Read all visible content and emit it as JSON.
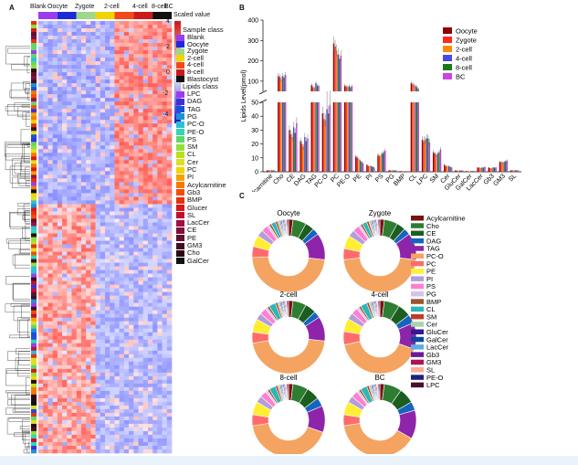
{
  "panels": {
    "a": "A",
    "b": "B",
    "c": "C"
  },
  "heatmap": {
    "column_labels": [
      "Blank",
      "Oocyte",
      "Zygote",
      "2-cell",
      "4-cell",
      "8-cell",
      "BC"
    ],
    "column_colors": [
      "#9c3cf0",
      "#1b2bd8",
      "#9fd88a",
      "#f2d400",
      "#f04a1a",
      "#cc1a1a",
      "#111111"
    ],
    "scaled_value_title": "Scaled value",
    "scale_ticks": [
      "4",
      "2",
      "0",
      "-2",
      "-4"
    ],
    "sample_class_title": "Sample class",
    "sample_classes": [
      {
        "label": "Blank",
        "color": "#9c3cf0"
      },
      {
        "label": "Oocyte",
        "color": "#1b2bd8"
      },
      {
        "label": "Zygote",
        "color": "#9fd88a"
      },
      {
        "label": "2-cell",
        "color": "#f2d400"
      },
      {
        "label": "4-cell",
        "color": "#f04a1a"
      },
      {
        "label": "8-cell",
        "color": "#cc1a1a"
      },
      {
        "label": "Blastocyst",
        "color": "#111111"
      }
    ],
    "lipids_class_title": "Lipids class",
    "lipid_classes": [
      {
        "label": "LPC",
        "color": "#9c3cf0"
      },
      {
        "label": "DAG",
        "color": "#3f2fd8"
      },
      {
        "label": "TAG",
        "color": "#1b4fd8"
      },
      {
        "label": "PG",
        "color": "#1f8fd8"
      },
      {
        "label": "PC-O",
        "color": "#2cc0d8"
      },
      {
        "label": "PE-O",
        "color": "#2fd8b0"
      },
      {
        "label": "PS",
        "color": "#5fd86a"
      },
      {
        "label": "SM",
        "color": "#8fe03a"
      },
      {
        "label": "CL",
        "color": "#b8e020"
      },
      {
        "label": "Cer",
        "color": "#dde020"
      },
      {
        "label": "PC",
        "color": "#f2d400"
      },
      {
        "label": "PI",
        "color": "#f2a200"
      },
      {
        "label": "Acylcarnitine",
        "color": "#f27a00"
      },
      {
        "label": "Gb3",
        "color": "#f25000"
      },
      {
        "label": "BMP",
        "color": "#e83010"
      },
      {
        "label": "Glucer",
        "color": "#d81818"
      },
      {
        "label": "SL",
        "color": "#c01030"
      },
      {
        "label": "LacCer",
        "color": "#a01040"
      },
      {
        "label": "CE",
        "color": "#801040"
      },
      {
        "label": "PE",
        "color": "#601030"
      },
      {
        "label": "GM3",
        "color": "#401020"
      },
      {
        "label": "Cho",
        "color": "#2a0a10"
      },
      {
        "label": "GalCer",
        "color": "#111111"
      }
    ]
  },
  "chart_data": [
    {
      "type": "bar",
      "panel": "B",
      "ylabel": "Lipids Level(pmol)",
      "y_ticks_lower": [
        "0",
        "10",
        "20",
        "30",
        "40",
        "50"
      ],
      "y_ticks_upper": [
        "100",
        "200",
        "300",
        "400"
      ],
      "ylim_lower": [
        0,
        50
      ],
      "ylim_upper": [
        50,
        400
      ],
      "categories": [
        "Acylcarnitine",
        "Cho",
        "CE",
        "DAG",
        "TAG",
        "PC-O",
        "PC",
        "PE-O",
        "PE",
        "PI",
        "PS",
        "PG",
        "BMP",
        "CL",
        "LPC",
        "SM",
        "Cer",
        "GluCer",
        "GalCer",
        "LacCer",
        "Gb3",
        "GM3",
        "SL"
      ],
      "legend_position": "top-right",
      "series": [
        {
          "name": "Oocyte",
          "color": "#8b0000",
          "values": [
            1,
            125,
            30,
            22,
            80,
            42,
            285,
            78,
            11,
            5,
            12,
            1,
            0.5,
            90,
            23,
            14,
            5,
            1,
            0.5,
            3,
            3,
            7,
            1
          ]
        },
        {
          "name": "Zygote",
          "color": "#ff2a1a",
          "values": [
            1,
            120,
            27,
            20,
            70,
            38,
            270,
            72,
            10,
            4,
            11,
            1,
            0.5,
            85,
            22,
            13,
            4,
            0.8,
            0.4,
            3,
            2.5,
            7,
            1
          ]
        },
        {
          "name": "2-cell",
          "color": "#ff8c00",
          "values": [
            1,
            110,
            25,
            18,
            65,
            37,
            250,
            70,
            9,
            4,
            12,
            1,
            0.5,
            80,
            23,
            12,
            4,
            0.8,
            0.4,
            2.5,
            2.5,
            6.5,
            1
          ]
        },
        {
          "name": "4-cell",
          "color": "#4a4ae0",
          "values": [
            1,
            125,
            32,
            25,
            90,
            45,
            230,
            75,
            8,
            4,
            13,
            1,
            0.4,
            75,
            24,
            13,
            4,
            0.9,
            0.5,
            3,
            3,
            7,
            1
          ]
        },
        {
          "name": "8-cell",
          "color": "#1a7a1a",
          "values": [
            1,
            118,
            28,
            22,
            78,
            42,
            210,
            70,
            7,
            3.5,
            14,
            1,
            0.4,
            70,
            24,
            14,
            3.5,
            0.9,
            0.5,
            3,
            3,
            7.5,
            1
          ]
        },
        {
          "name": "BC",
          "color": "#cc44dd",
          "values": [
            1,
            130,
            35,
            24,
            75,
            48,
            225,
            74,
            6,
            3,
            15,
            1,
            0.4,
            60,
            21,
            16,
            3,
            1,
            0.6,
            3.5,
            3,
            8,
            1
          ]
        }
      ]
    },
    {
      "type": "pie",
      "panel": "C",
      "charts": [
        {
          "title": "Oocyte",
          "values": [
            2,
            6,
            4,
            3,
            12,
            48,
            5,
            5,
            3,
            3,
            1,
            1,
            2,
            1,
            1,
            0.5,
            0.5,
            0.5,
            0.5,
            0.5,
            0.5,
            0.5,
            0.5
          ]
        },
        {
          "title": "Zygote",
          "values": [
            2,
            6,
            4,
            3,
            12,
            47,
            5,
            6,
            3,
            3,
            1,
            1,
            2,
            1,
            1,
            0.5,
            0.5,
            0.5,
            0.5,
            0.5,
            0.5,
            0.5,
            0.5
          ]
        },
        {
          "title": "2-cell",
          "values": [
            2,
            6,
            5,
            3,
            11,
            46,
            5,
            6,
            3,
            3,
            1,
            1,
            3,
            1,
            1,
            0.5,
            0.5,
            0.5,
            0.5,
            0.5,
            0.5,
            0.5,
            0.5
          ]
        },
        {
          "title": "4-cell",
          "values": [
            2,
            7,
            6,
            4,
            12,
            42,
            6,
            6,
            3,
            3,
            1,
            1,
            3,
            1,
            1,
            0.5,
            0.5,
            0.5,
            0.5,
            0.5,
            0.5,
            0.5,
            0.5
          ]
        },
        {
          "title": "8-cell",
          "values": [
            2,
            7,
            6,
            4,
            12,
            43,
            5,
            6,
            3,
            3,
            1,
            1,
            3,
            1,
            1,
            0.5,
            0.5,
            0.5,
            0.5,
            0.5,
            0.5,
            0.5,
            0.5
          ]
        },
        {
          "title": "BC",
          "values": [
            2,
            8,
            7,
            4,
            13,
            40,
            5,
            6,
            3,
            3,
            1,
            1,
            3,
            1,
            1,
            0.5,
            0.5,
            0.5,
            0.5,
            0.5,
            0.5,
            0.5,
            0.5
          ]
        }
      ],
      "legend": [
        {
          "label": "Acylcarnitine",
          "color": "#7a1010"
        },
        {
          "label": "Cho",
          "color": "#2e7d32"
        },
        {
          "label": "CE",
          "color": "#1b5e20"
        },
        {
          "label": "DAG",
          "color": "#1565c0"
        },
        {
          "label": "TAG",
          "color": "#8e24aa"
        },
        {
          "label": "PC-O",
          "color": "#f4a460"
        },
        {
          "label": "PC",
          "color": "#ff6b6b"
        },
        {
          "label": "PE",
          "color": "#ffee33"
        },
        {
          "label": "PI",
          "color": "#b39ddb"
        },
        {
          "label": "PS",
          "color": "#ff7fd0"
        },
        {
          "label": "PG",
          "color": "#d1c4e9"
        },
        {
          "label": "BMP",
          "color": "#a0522d"
        },
        {
          "label": "CL",
          "color": "#2ab7b7"
        },
        {
          "label": "SM",
          "color": "#c0392b"
        },
        {
          "label": "Cer",
          "color": "#a5d6a7"
        },
        {
          "label": "GluCer",
          "color": "#311b92"
        },
        {
          "label": "GalCer",
          "color": "#0d47a1"
        },
        {
          "label": "LacCer",
          "color": "#5dade2"
        },
        {
          "label": "Gb3",
          "color": "#6a1b9a"
        },
        {
          "label": "GM3",
          "color": "#ad1457"
        },
        {
          "label": "SL",
          "color": "#ffab91"
        },
        {
          "label": "PE-O",
          "color": "#1a237e"
        },
        {
          "label": "LPC",
          "color": "#4a0e2e"
        }
      ]
    }
  ]
}
